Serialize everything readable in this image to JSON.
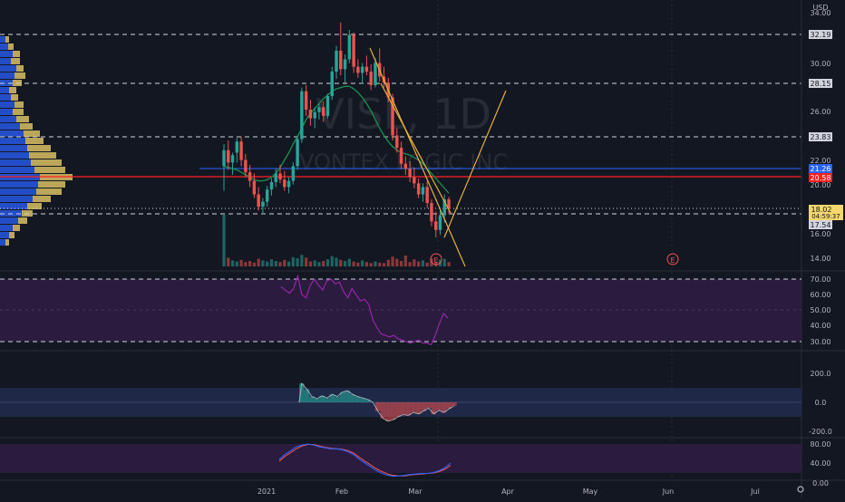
{
  "chart": {
    "currency": "USD",
    "watermark_symbol": "VISL, 1D",
    "watermark_name": "VONTEX LOGIC INC",
    "current_price": "18.02",
    "countdown": "04:59:37",
    "earnings_marker": "E"
  },
  "price_axis": {
    "ticks": [
      "34.00",
      "30.00",
      "26.00",
      "22.00",
      "20.00",
      "16.00",
      "14.00"
    ]
  },
  "price_labels": {
    "level_1": "32.19",
    "level_2": "28.15",
    "level_3": "23.83",
    "level_4": "21.26",
    "level_5": "20.58",
    "level_6": "17.54"
  },
  "colors": {
    "background": "#131722",
    "bull": "#26a69a",
    "bear": "#ef5350",
    "red_level": "#ff1f1f",
    "blue_level": "#2962ff",
    "current_price_bg": "#f5d76e",
    "trendline": "#e8b03a",
    "ema": "#1b8a4a",
    "oscillator_band": "#3b1f5c"
  },
  "rsi_panel": {
    "ticks": [
      "70.00",
      "60.00",
      "50.00",
      "40.00",
      "30.00"
    ]
  },
  "macd_panel": {
    "ticks": [
      "200.0",
      "0.0",
      "-200.0"
    ]
  },
  "stoch_panel": {
    "ticks": [
      "80.00",
      "40.00",
      "0.00"
    ]
  },
  "time_axis": {
    "labels": [
      "2021",
      "Feb",
      "Mar",
      "Apr",
      "May",
      "Jun",
      "Jul"
    ]
  },
  "chart_data": {
    "type": "candlestick",
    "title": "VISL, 1D",
    "ylim": [
      13.5,
      34.5
    ],
    "candles": [
      {
        "o": 21.5,
        "h": 23.3,
        "l": 19.5,
        "c": 22.8
      },
      {
        "o": 22.8,
        "h": 23.6,
        "l": 21.2,
        "c": 21.8
      },
      {
        "o": 21.8,
        "h": 22.6,
        "l": 20.8,
        "c": 22.4
      },
      {
        "o": 22.6,
        "h": 23.8,
        "l": 21.8,
        "c": 23.5
      },
      {
        "o": 23.5,
        "h": 23.9,
        "l": 21.5,
        "c": 22.0
      },
      {
        "o": 22.0,
        "h": 22.5,
        "l": 20.6,
        "c": 21.0
      },
      {
        "o": 21.0,
        "h": 21.6,
        "l": 19.8,
        "c": 20.3
      },
      {
        "o": 20.3,
        "h": 20.9,
        "l": 18.9,
        "c": 19.2
      },
      {
        "o": 19.2,
        "h": 19.8,
        "l": 17.9,
        "c": 18.2
      },
      {
        "o": 18.2,
        "h": 18.9,
        "l": 17.6,
        "c": 18.6
      },
      {
        "o": 18.6,
        "h": 19.9,
        "l": 18.2,
        "c": 19.6
      },
      {
        "o": 19.6,
        "h": 20.5,
        "l": 19.1,
        "c": 20.2
      },
      {
        "o": 20.2,
        "h": 21.3,
        "l": 19.8,
        "c": 20.9
      },
      {
        "o": 20.9,
        "h": 21.6,
        "l": 20.1,
        "c": 20.4
      },
      {
        "o": 20.4,
        "h": 21.1,
        "l": 19.5,
        "c": 19.8
      },
      {
        "o": 19.8,
        "h": 20.6,
        "l": 19.3,
        "c": 20.3
      },
      {
        "o": 20.3,
        "h": 21.8,
        "l": 20.0,
        "c": 21.5
      },
      {
        "o": 21.5,
        "h": 24.0,
        "l": 21.2,
        "c": 23.7
      },
      {
        "o": 23.7,
        "h": 27.9,
        "l": 23.4,
        "c": 27.6
      },
      {
        "o": 27.6,
        "h": 28.1,
        "l": 25.6,
        "c": 26.1
      },
      {
        "o": 26.1,
        "h": 26.9,
        "l": 24.8,
        "c": 25.4
      },
      {
        "o": 25.4,
        "h": 26.3,
        "l": 24.6,
        "c": 25.9
      },
      {
        "o": 25.9,
        "h": 26.6,
        "l": 25.3,
        "c": 26.3
      },
      {
        "o": 26.3,
        "h": 26.8,
        "l": 25.1,
        "c": 25.6
      },
      {
        "o": 25.6,
        "h": 27.4,
        "l": 25.4,
        "c": 27.2
      },
      {
        "o": 27.2,
        "h": 29.6,
        "l": 26.9,
        "c": 29.2
      },
      {
        "o": 29.2,
        "h": 31.3,
        "l": 28.6,
        "c": 30.9
      },
      {
        "o": 30.9,
        "h": 33.2,
        "l": 28.9,
        "c": 29.4
      },
      {
        "o": 29.4,
        "h": 30.6,
        "l": 28.3,
        "c": 30.2
      },
      {
        "o": 30.2,
        "h": 32.6,
        "l": 29.9,
        "c": 32.2
      },
      {
        "o": 32.2,
        "h": 32.4,
        "l": 29.1,
        "c": 29.6
      },
      {
        "o": 29.6,
        "h": 30.2,
        "l": 28.7,
        "c": 29.1
      },
      {
        "o": 29.1,
        "h": 29.9,
        "l": 28.2,
        "c": 29.6
      },
      {
        "o": 29.6,
        "h": 30.5,
        "l": 28.9,
        "c": 29.2
      },
      {
        "o": 29.2,
        "h": 29.8,
        "l": 27.7,
        "c": 28.1
      },
      {
        "o": 28.1,
        "h": 30.3,
        "l": 27.9,
        "c": 29.9
      },
      {
        "o": 29.9,
        "h": 31.1,
        "l": 28.4,
        "c": 28.8
      },
      {
        "o": 28.8,
        "h": 29.6,
        "l": 27.9,
        "c": 28.3
      },
      {
        "o": 28.3,
        "h": 28.7,
        "l": 26.7,
        "c": 27.1
      },
      {
        "o": 27.1,
        "h": 27.4,
        "l": 23.6,
        "c": 24.0
      },
      {
        "o": 24.0,
        "h": 24.6,
        "l": 22.6,
        "c": 23.0
      },
      {
        "o": 23.0,
        "h": 23.5,
        "l": 21.3,
        "c": 21.7
      },
      {
        "o": 21.7,
        "h": 22.3,
        "l": 20.8,
        "c": 21.3
      },
      {
        "o": 21.3,
        "h": 21.9,
        "l": 20.2,
        "c": 20.6
      },
      {
        "o": 20.6,
        "h": 21.4,
        "l": 19.7,
        "c": 20.1
      },
      {
        "o": 20.1,
        "h": 20.5,
        "l": 18.9,
        "c": 19.2
      },
      {
        "o": 19.2,
        "h": 20.1,
        "l": 18.6,
        "c": 19.8
      },
      {
        "o": 19.8,
        "h": 20.3,
        "l": 18.1,
        "c": 18.5
      },
      {
        "o": 18.5,
        "h": 18.8,
        "l": 16.6,
        "c": 17.0
      },
      {
        "o": 17.0,
        "h": 17.8,
        "l": 15.7,
        "c": 16.3
      },
      {
        "o": 16.3,
        "h": 17.9,
        "l": 15.9,
        "c": 17.5
      },
      {
        "o": 17.5,
        "h": 19.2,
        "l": 16.9,
        "c": 18.8
      },
      {
        "o": 18.8,
        "h": 19.0,
        "l": 17.6,
        "c": 18.02
      }
    ],
    "volumes": [
      9.5,
      1.6,
      1.1,
      0.9,
      1.2,
      0.8,
      1.0,
      0.7,
      1.4,
      1.1,
      0.9,
      1.3,
      1.0,
      0.8,
      1.2,
      0.9,
      1.7,
      1.5,
      2.1,
      1.6,
      0.9,
      1.1,
      0.8,
      1.0,
      1.3,
      1.9,
      1.6,
      1.2,
      1.0,
      1.4,
      0.9,
      0.7,
      1.1,
      0.8,
      0.6,
      0.9,
      0.7,
      0.6,
      1.2,
      1.8,
      1.4,
      1.0,
      2.0,
      0.8,
      1.3,
      0.9,
      1.1,
      0.7,
      1.5,
      0.9,
      1.2,
      1.4,
      0.8
    ],
    "ema": [
      21.5,
      21.4,
      21.3,
      21.2,
      21.0,
      20.8,
      20.6,
      20.4,
      20.3,
      20.3,
      20.4,
      20.6,
      20.9,
      21.4,
      22.0,
      22.6,
      23.3,
      23.9,
      24.6,
      25.3,
      25.8,
      26.2,
      26.6,
      27.0,
      27.3,
      27.6,
      27.8,
      27.9,
      28.0,
      28.0,
      27.8,
      27.5,
      27.1,
      26.6,
      26.0,
      25.3,
      24.6,
      24.0,
      23.5,
      23.1,
      22.8,
      22.6,
      22.5,
      22.4,
      22.2,
      22.0,
      21.7,
      21.3,
      20.9,
      20.5,
      20.1,
      19.7,
      19.3
    ],
    "rsi": [
      65,
      63,
      61,
      64,
      72,
      60,
      58,
      66,
      70,
      66,
      63,
      69,
      70,
      67,
      68,
      62,
      58,
      64,
      60,
      56,
      57,
      54,
      44,
      39,
      35,
      34,
      33,
      34,
      32,
      31,
      30,
      29,
      30,
      31,
      29,
      29,
      28,
      34,
      42,
      48,
      45
    ],
    "macd_hist": [
      130,
      90,
      40,
      25,
      45,
      30,
      55,
      40,
      70,
      80,
      55,
      40,
      30,
      20,
      0,
      -60,
      -110,
      -130,
      -120,
      -100,
      -85,
      -90,
      -70,
      -80,
      -60,
      -40,
      -80,
      -55,
      -70,
      -45,
      -25
    ],
    "stoch_k": [
      48,
      58,
      66,
      74,
      78,
      80,
      78,
      74,
      72,
      70,
      70,
      68,
      64,
      58,
      48,
      40,
      32,
      24,
      18,
      14,
      12,
      13,
      14,
      16,
      17,
      18,
      18,
      20,
      24,
      30,
      40
    ],
    "stoch_d": [
      44,
      54,
      62,
      70,
      76,
      79,
      79,
      76,
      73,
      71,
      70,
      69,
      66,
      61,
      52,
      44,
      36,
      28,
      22,
      17,
      14,
      13,
      13,
      15,
      16,
      17,
      18,
      19,
      22,
      27,
      35
    ]
  }
}
